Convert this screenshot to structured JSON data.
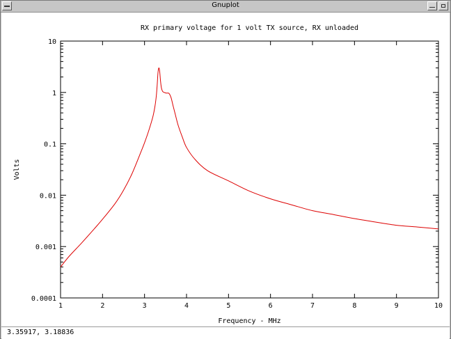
{
  "window": {
    "title": "Gnuplot"
  },
  "status": {
    "coords": "3.35917,  3.18836"
  },
  "chart_data": {
    "type": "line",
    "title": "RX primary voltage for 1 volt TX source, RX unloaded",
    "xlabel": "Frequency - MHz",
    "ylabel": "Volts",
    "xlim": [
      1,
      10
    ],
    "ylim": [
      0.0001,
      10
    ],
    "yscale": "log",
    "grid": false,
    "xticks": [
      1,
      2,
      3,
      4,
      5,
      6,
      7,
      8,
      9,
      10
    ],
    "xtick_labels": [
      "1",
      "2",
      "3",
      "4",
      "5",
      "6",
      "7",
      "8",
      "9",
      "10"
    ],
    "yticks": [
      0.0001,
      0.001,
      0.01,
      0.1,
      1,
      10
    ],
    "ytick_labels": [
      "0.0001",
      "0.001",
      "0.01",
      "0.1",
      "1",
      "10"
    ],
    "colors": {
      "line": "#dd0000",
      "axes": "#000000"
    },
    "series": [
      {
        "x": [
          1.0,
          1.2,
          1.5,
          1.8,
          2.0,
          2.3,
          2.5,
          2.7,
          2.9,
          3.0,
          3.1,
          3.2,
          3.25,
          3.28,
          3.3,
          3.32,
          3.34,
          3.36,
          3.38,
          3.4,
          3.43,
          3.47,
          3.52,
          3.58,
          3.63,
          3.68,
          3.73,
          3.8,
          3.9,
          4.0,
          4.2,
          4.5,
          5.0,
          5.5,
          6.0,
          6.5,
          7.0,
          7.5,
          8.0,
          8.5,
          9.0,
          9.5,
          10.0
        ],
        "y": [
          0.0004,
          0.00064,
          0.00117,
          0.0022,
          0.0034,
          0.0069,
          0.0125,
          0.026,
          0.065,
          0.105,
          0.18,
          0.34,
          0.55,
          0.85,
          1.35,
          2.4,
          3.0,
          2.6,
          1.7,
          1.25,
          1.05,
          1.0,
          0.97,
          0.96,
          0.8,
          0.55,
          0.38,
          0.23,
          0.135,
          0.085,
          0.05,
          0.03,
          0.019,
          0.012,
          0.0085,
          0.0065,
          0.005,
          0.0042,
          0.0035,
          0.003,
          0.0026,
          0.0024,
          0.0022
        ]
      }
    ]
  }
}
